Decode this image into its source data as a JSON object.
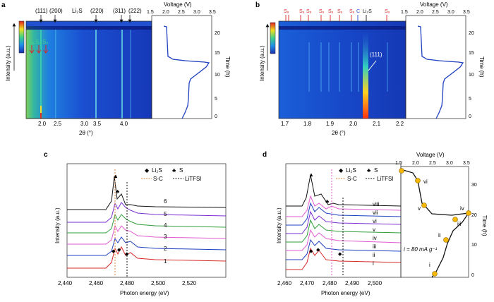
{
  "panels": {
    "a": {
      "label": "a",
      "xlabel": "2θ (°)",
      "ylabel": "Intensity (a.u.)",
      "voltage_label": "Voltage (V)",
      "time_label": "Time (h)",
      "x_ticks": [
        "2.0",
        "2.5",
        "3.0",
        "3.5",
        "4.0"
      ],
      "v_ticks": [
        "1.5",
        "2.0",
        "2.5",
        "3.0",
        "3.5"
      ],
      "t_ticks": [
        "0",
        "5",
        "10",
        "15",
        "20"
      ],
      "top_labels": [
        "(111)",
        "(200)",
        "Li₂S",
        "(220)",
        "(311)",
        "(222)"
      ],
      "s8_labels": [
        "S₈",
        "S₈",
        "S₈"
      ]
    },
    "b": {
      "label": "b",
      "xlabel": "2θ (°)",
      "ylabel": "Intensity (a.u.)",
      "voltage_label": "Voltage (V)",
      "time_label": "Time (h)",
      "x_ticks": [
        "1.7",
        "1.8",
        "1.9",
        "2.0",
        "2.1",
        "2.2"
      ],
      "v_ticks": [
        "1.5",
        "2.0",
        "2.5",
        "3.0",
        "3.5"
      ],
      "t_ticks": [
        "0",
        "5",
        "10",
        "15",
        "20"
      ],
      "top_labels": [
        "S₈",
        "S₈",
        "S₈",
        "S₈",
        "S₈",
        "S₈",
        "S₈",
        "C",
        "Li₂S",
        "S₈"
      ],
      "inset_label": "(111)"
    },
    "c": {
      "label": "c",
      "xlabel": "Photon energy (eV)",
      "ylabel": "Intensity (a.u.)",
      "x_ticks": [
        "2,440",
        "2,460",
        "2,480",
        "2,500",
        "2,520"
      ],
      "legend": {
        "li2s": "Li₂S",
        "s": "S",
        "sc": "S-C",
        "litfsi": "LiTFSI"
      },
      "curve_labels": [
        "1",
        "2",
        "3",
        "4",
        "5",
        "6"
      ]
    },
    "d": {
      "label": "d",
      "xlabel": "Photon energy (eV)",
      "ylabel": "Intensity (a.u.)",
      "voltage_label": "Voltage (V)",
      "time_label": "Time (h)",
      "x_ticks": [
        "2,460",
        "2,470",
        "2,480",
        "2,490",
        "2,500"
      ],
      "v_ticks": [
        "1.5",
        "2.0",
        "2.5",
        "3.0",
        "3.5"
      ],
      "t_ticks": [
        "0",
        "10",
        "20",
        "30"
      ],
      "legend": {
        "li2s": "Li₂S",
        "s": "S",
        "sc": "S-C",
        "litfsi": "LiTFSI"
      },
      "curve_labels": [
        "i",
        "ii",
        "iii",
        "iv",
        "v",
        "vi",
        "vii",
        "viii"
      ],
      "current_label": "i = 80 mA g⁻¹",
      "point_labels": [
        "i",
        "ii",
        "iii",
        "iv",
        "v",
        "vi",
        "vii"
      ]
    }
  },
  "colors": {
    "heatmap_bg": "#1a3fc4",
    "voltage": "#1f3fbf",
    "red_arrow": "#d62828",
    "blue_arrow": "#1f4fd8",
    "marker": "#f5b800",
    "curves": [
      "#d62828",
      "#1f3fbf",
      "#e05ad0",
      "#2e9e3a",
      "#7a2fd0",
      "#111111"
    ]
  }
}
